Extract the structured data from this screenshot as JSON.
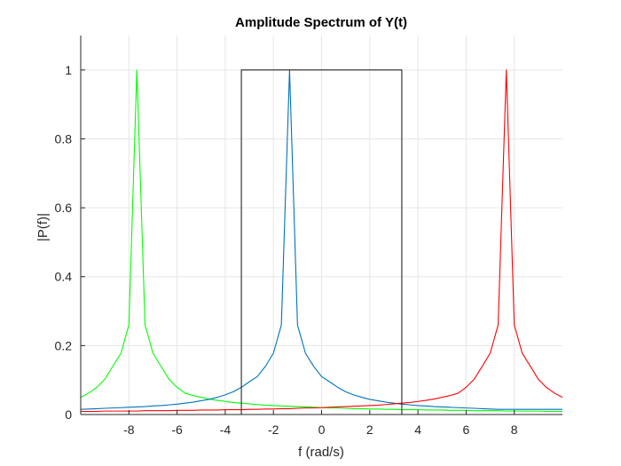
{
  "chart_data": {
    "type": "line",
    "title": "Amplitude Spectrum of Y(t)",
    "xlabel": "f (rad/s)",
    "ylabel": "|P(f)|",
    "xlim": [
      -10,
      10
    ],
    "ylim": [
      0,
      1.1
    ],
    "grid": true,
    "x_ticks": [
      -8,
      -6,
      -4,
      -2,
      0,
      2,
      4,
      6,
      8
    ],
    "x_tick_labels": [
      "-8",
      "-6",
      "-4",
      "-2",
      "0",
      "2",
      "4",
      "6",
      "8"
    ],
    "y_ticks": [
      0,
      0.2,
      0.4,
      0.6,
      0.8,
      1
    ],
    "y_tick_labels": [
      "0",
      "0.2",
      "0.4",
      "0.6",
      "0.8",
      "1"
    ],
    "x": [
      -10,
      -9.67,
      -9.33,
      -9,
      -8.67,
      -8.33,
      -8,
      -7.67,
      -7.33,
      -7,
      -6.67,
      -6.33,
      -6,
      -5.67,
      -5.33,
      -5,
      -4.67,
      -4.33,
      -4,
      -3.67,
      -3.33,
      -3,
      -2.67,
      -2.33,
      -2,
      -1.67,
      -1.33,
      -1,
      -0.67,
      -0.33,
      0,
      0.33,
      0.67,
      1,
      1.33,
      1.67,
      2,
      2.33,
      2.67,
      3,
      3.33,
      3.67,
      4,
      4.33,
      4.67,
      5,
      5.33,
      5.67,
      6,
      6.33,
      6.67,
      7,
      7.33,
      7.67,
      8,
      8.33,
      8.67,
      9,
      9.33,
      9.67,
      10
    ],
    "series": [
      {
        "color": "#00ff00",
        "values": [
          0.05,
          0.062,
          0.079,
          0.102,
          0.14,
          0.178,
          0.26,
          1.0,
          0.26,
          0.178,
          0.14,
          0.102,
          0.079,
          0.062,
          0.055,
          0.05,
          0.045,
          0.041,
          0.038,
          0.035,
          0.033,
          0.031,
          0.029,
          0.027,
          0.026,
          0.025,
          0.024,
          0.023,
          0.022,
          0.021,
          0.02,
          0.019,
          0.019,
          0.018,
          0.017,
          0.017,
          0.016,
          0.016,
          0.015,
          0.015,
          0.014,
          0.014,
          0.014,
          0.013,
          0.013,
          0.013,
          0.012,
          0.012,
          0.012,
          0.011,
          0.011,
          0.011,
          0.011,
          0.01,
          0.01,
          0.01,
          0.01,
          0.01,
          0.009,
          0.009,
          0.009
        ]
      },
      {
        "color": "#0072bd",
        "values": [
          0.015,
          0.016,
          0.017,
          0.018,
          0.019,
          0.02,
          0.021,
          0.022,
          0.023,
          0.025,
          0.026,
          0.028,
          0.03,
          0.033,
          0.036,
          0.04,
          0.044,
          0.05,
          0.057,
          0.066,
          0.079,
          0.095,
          0.11,
          0.14,
          0.178,
          0.26,
          1.0,
          0.26,
          0.178,
          0.14,
          0.11,
          0.095,
          0.079,
          0.066,
          0.057,
          0.05,
          0.044,
          0.04,
          0.036,
          0.033,
          0.03,
          0.028,
          0.026,
          0.025,
          0.023,
          0.022,
          0.021,
          0.02,
          0.019,
          0.018,
          0.017,
          0.016,
          0.015,
          0.015,
          0.015,
          0.015,
          0.015,
          0.015,
          0.015,
          0.015,
          0.015
        ]
      },
      {
        "color": "#ff0000",
        "values": [
          0.009,
          0.009,
          0.009,
          0.01,
          0.01,
          0.01,
          0.01,
          0.01,
          0.011,
          0.011,
          0.011,
          0.011,
          0.012,
          0.012,
          0.012,
          0.013,
          0.013,
          0.013,
          0.014,
          0.014,
          0.014,
          0.015,
          0.015,
          0.016,
          0.016,
          0.017,
          0.017,
          0.018,
          0.019,
          0.019,
          0.02,
          0.021,
          0.022,
          0.023,
          0.024,
          0.025,
          0.026,
          0.027,
          0.029,
          0.031,
          0.033,
          0.035,
          0.038,
          0.041,
          0.045,
          0.05,
          0.055,
          0.062,
          0.079,
          0.102,
          0.14,
          0.178,
          0.26,
          1.0,
          0.26,
          0.178,
          0.14,
          0.102,
          0.079,
          0.062,
          0.05
        ]
      },
      {
        "color": "#262626",
        "x": [
          -10,
          -3.33,
          -3.33,
          3.33,
          3.33,
          10
        ],
        "values": [
          0,
          0,
          1,
          1,
          0,
          0
        ]
      }
    ]
  }
}
